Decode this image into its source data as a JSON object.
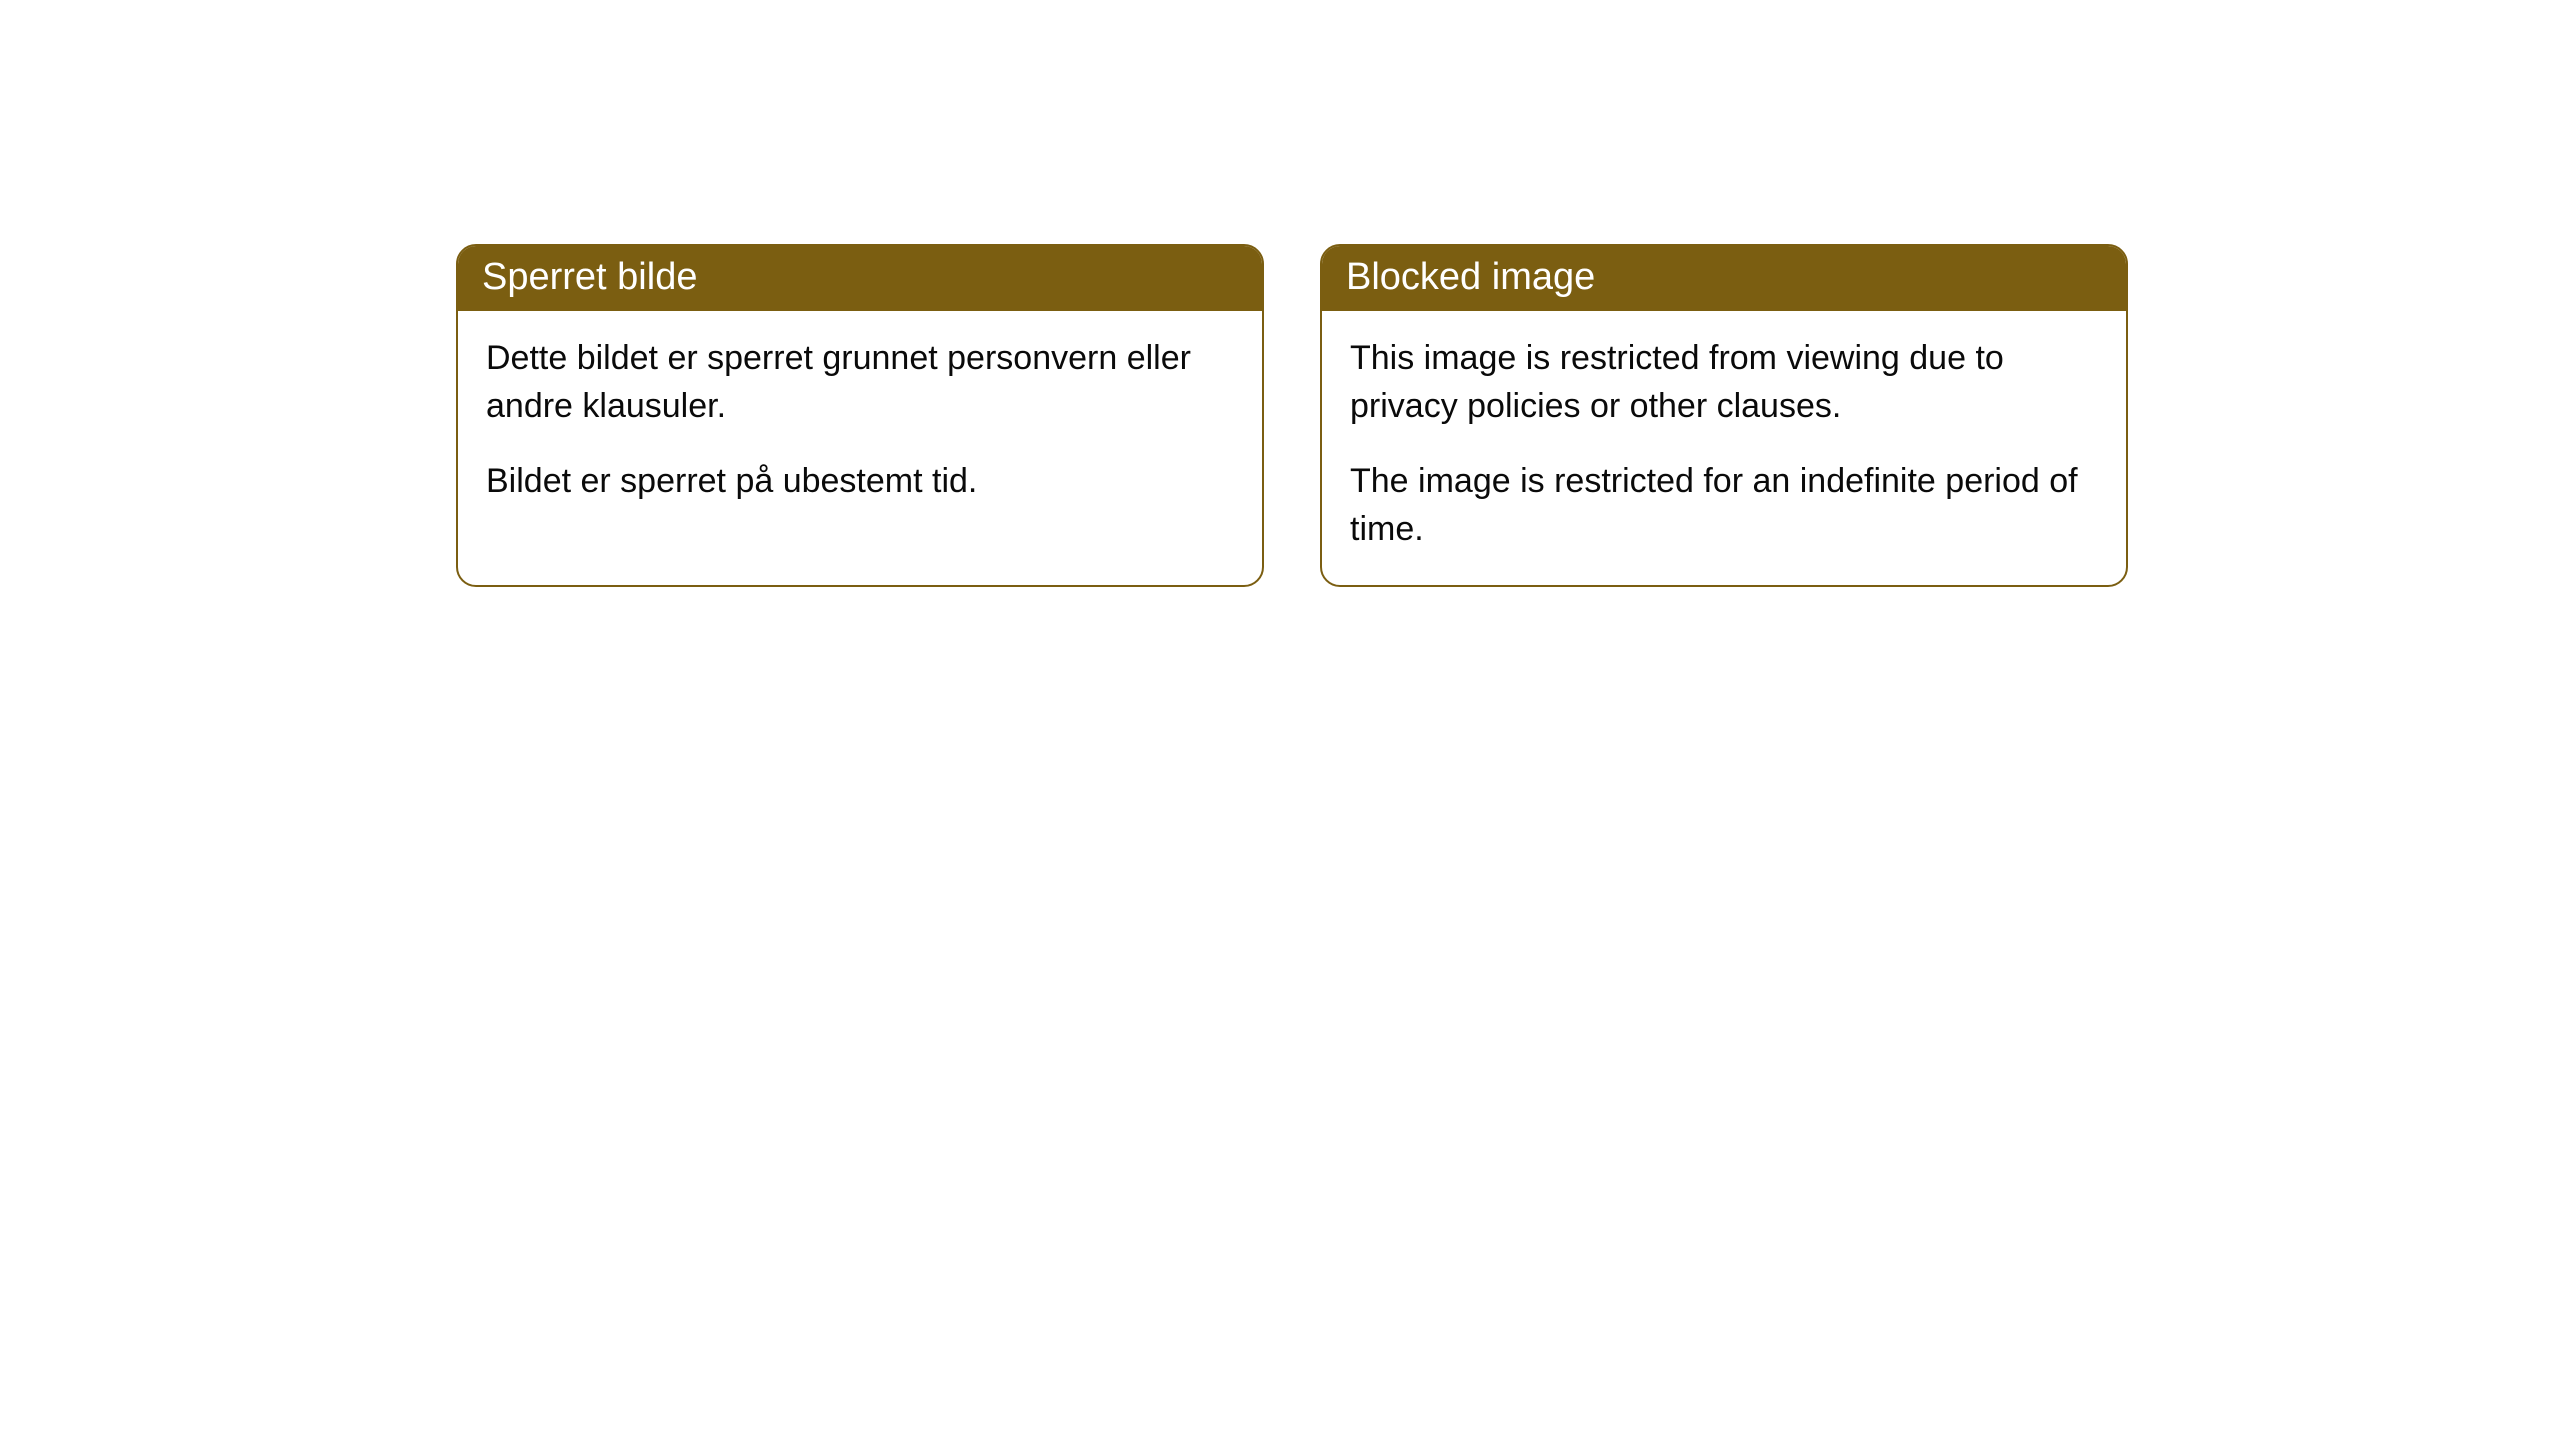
{
  "cards": [
    {
      "title": "Sperret bilde",
      "paragraph1": "Dette bildet er sperret grunnet personvern eller andre klausuler.",
      "paragraph2": "Bildet er sperret på ubestemt tid."
    },
    {
      "title": "Blocked image",
      "paragraph1": "This image is restricted from viewing due to privacy policies or other clauses.",
      "paragraph2": "The image is restricted for an indefinite period of time."
    }
  ],
  "styling": {
    "header_bg_color": "#7b5e11",
    "header_text_color": "#ffffff",
    "border_color": "#7b5e11",
    "body_bg_color": "#ffffff",
    "body_text_color": "#0a0a0a",
    "border_radius": 20,
    "header_fontsize": 38,
    "body_fontsize": 34
  }
}
